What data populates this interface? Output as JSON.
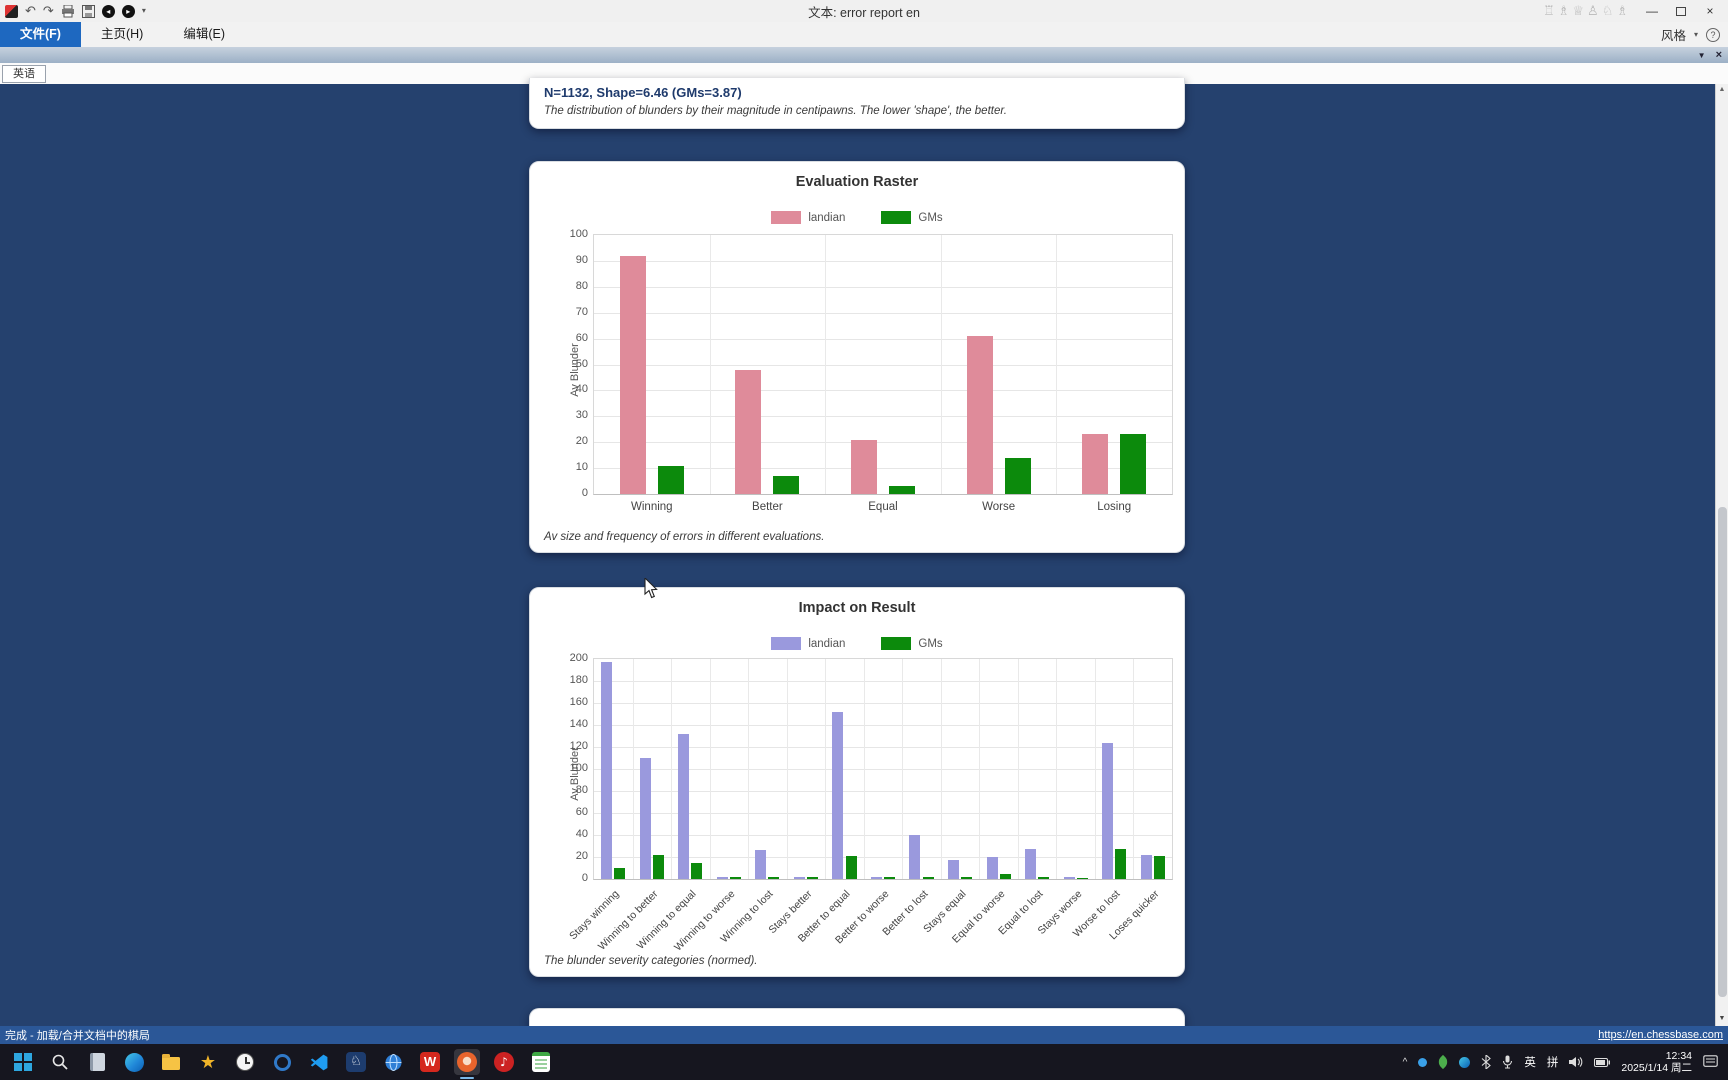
{
  "titlebar": {
    "title": "文本: error report en",
    "figurines": [
      "♖",
      "♗",
      "♕",
      "♙",
      "♘",
      "♗"
    ],
    "minimize": "—",
    "close": "×"
  },
  "menubar": {
    "tabs": [
      {
        "label": "文件(F)",
        "active": true
      },
      {
        "label": "主页(H)",
        "active": false
      },
      {
        "label": "编辑(E)",
        "active": false
      }
    ],
    "style_button": "风格",
    "caret": "▾",
    "help": "?"
  },
  "toolbar_strip": {
    "collapse": "▼",
    "close": "×"
  },
  "doc_tab": "英语",
  "stats_card": {
    "heading": "N=1132, Shape=6.46 (GMs=3.87)",
    "caption": "The distribution of blunders by their magnitude in centipawns. The lower 'shape', the better."
  },
  "chart_data": [
    {
      "type": "bar",
      "title": "Evaluation Raster",
      "ylabel": "Av Blunder",
      "ylim": [
        0,
        100
      ],
      "ytick_step": 10,
      "grid": true,
      "legend_position": "top",
      "categories": [
        "Winning",
        "Better",
        "Equal",
        "Worse",
        "Losing"
      ],
      "series": [
        {
          "name": "landian",
          "color": "#df8b9a",
          "values": [
            92,
            48,
            21,
            61,
            23
          ]
        },
        {
          "name": "GMs",
          "color": "#0c8a0c",
          "values": [
            11,
            7,
            3,
            14,
            23
          ]
        }
      ],
      "caption": "Av size and frequency of errors in different evaluations."
    },
    {
      "type": "bar",
      "title": "Impact on Result",
      "ylabel": "Av Blunder",
      "ylim": [
        0,
        200
      ],
      "ytick_step": 20,
      "grid": true,
      "legend_position": "top",
      "categories": [
        "Stays winning",
        "Winning to better",
        "Winning to equal",
        "Winning to worse",
        "Winning to lost",
        "Stays better",
        "Better to equal",
        "Better to worse",
        "Better to lost",
        "Stays equal",
        "Equal to worse",
        "Equal to lost",
        "Stays worse",
        "Worse to lost",
        "Loses quicker"
      ],
      "series": [
        {
          "name": "landian",
          "color": "#9a99dd",
          "values": [
            197,
            110,
            132,
            2,
            26,
            2,
            152,
            2,
            40,
            17,
            20,
            27,
            2,
            124,
            22
          ]
        },
        {
          "name": "GMs",
          "color": "#0c8a0c",
          "values": [
            10,
            22,
            15,
            2,
            2,
            2,
            21,
            2,
            2,
            2,
            5,
            2,
            1,
            27,
            21
          ]
        }
      ],
      "caption": "The blunder severity categories (normed)."
    }
  ],
  "status_bar": {
    "text": "完成 - 加载/合并文档中的棋局",
    "link": "https://en.chessbase.com"
  },
  "taskbar": {
    "icons": [
      "start",
      "search",
      "notebook",
      "edge-browser",
      "file-explorer",
      "star-app",
      "clock-app",
      "ring-app",
      "vscode",
      "board-app",
      "globe-app",
      "wps-office",
      "chessbase-app",
      "media-app",
      "notes-app"
    ],
    "tray": {
      "hidden_icons_chevron": "^",
      "board_glyph": "♘",
      "media_glyph": "♪",
      "wps_glyph": "W",
      "language": "英",
      "ime": "拼",
      "time": "12:34",
      "date": "2025/1/14 周二"
    }
  },
  "colors": {
    "desktop_bg": "#25416e",
    "status_bar": "#2b5797",
    "active_tab": "#1e68c0",
    "taskbar": "#16161f"
  }
}
